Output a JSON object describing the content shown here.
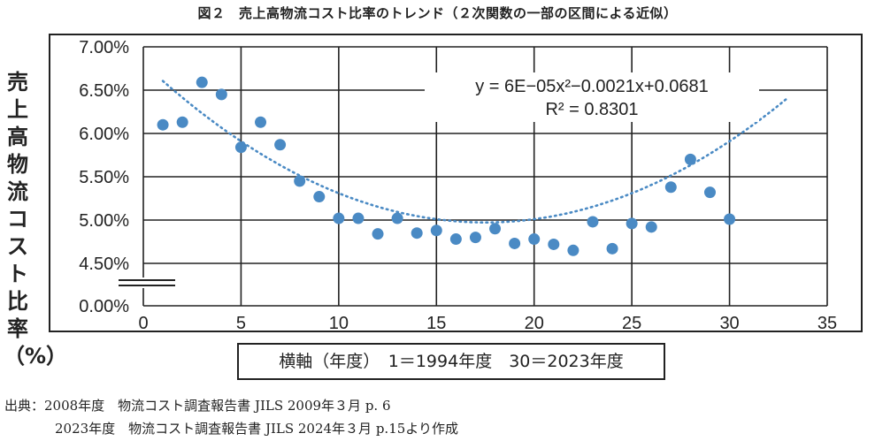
{
  "title": "図２　売上高物流コスト比率のトレンド（２次関数の一部の区間による近似）",
  "chart_data": {
    "type": "scatter",
    "ylabel": "売上高物流コスト比率（%）",
    "xlabel": "横軸（年度）　1＝1994年度　30＝2023年度",
    "xlim": [
      0,
      35
    ],
    "x_ticks": [
      "0",
      "5",
      "10",
      "15",
      "20",
      "25",
      "30",
      "35"
    ],
    "y_ticks": [
      "0.00%",
      "4.50%",
      "5.00%",
      "5.50%",
      "6.00%",
      "6.50%",
      "7.00%"
    ],
    "y_axis_break": true,
    "grid": true,
    "points": [
      {
        "x": 1,
        "y": 6.1
      },
      {
        "x": 2,
        "y": 6.13
      },
      {
        "x": 3,
        "y": 6.59
      },
      {
        "x": 4,
        "y": 6.45
      },
      {
        "x": 5,
        "y": 5.84
      },
      {
        "x": 6,
        "y": 6.13
      },
      {
        "x": 7,
        "y": 5.87
      },
      {
        "x": 8,
        "y": 5.45
      },
      {
        "x": 9,
        "y": 5.27
      },
      {
        "x": 10,
        "y": 5.02
      },
      {
        "x": 11,
        "y": 5.02
      },
      {
        "x": 12,
        "y": 4.84
      },
      {
        "x": 13,
        "y": 5.02
      },
      {
        "x": 14,
        "y": 4.85
      },
      {
        "x": 15,
        "y": 4.88
      },
      {
        "x": 16,
        "y": 4.78
      },
      {
        "x": 17,
        "y": 4.8
      },
      {
        "x": 18,
        "y": 4.9
      },
      {
        "x": 19,
        "y": 4.73
      },
      {
        "x": 20,
        "y": 4.78
      },
      {
        "x": 21,
        "y": 4.72
      },
      {
        "x": 22,
        "y": 4.65
      },
      {
        "x": 23,
        "y": 4.98
      },
      {
        "x": 24,
        "y": 4.67
      },
      {
        "x": 25,
        "y": 4.96
      },
      {
        "x": 26,
        "y": 4.92
      },
      {
        "x": 27,
        "y": 5.38
      },
      {
        "x": 28,
        "y": 5.7
      },
      {
        "x": 29,
        "y": 5.32
      },
      {
        "x": 30,
        "y": 5.01
      }
    ],
    "trendline": {
      "type": "polynomial-2",
      "x_range": [
        1,
        33
      ],
      "coefficients": {
        "a": 6e-05,
        "b": -0.0021,
        "c": 0.0681
      },
      "equation": "y = 6E−05x²−0.0021x+0.0681",
      "r_squared": "R² = 0.8301"
    },
    "colors": {
      "points": "#4a8ac4",
      "trendline": "#4a8ac4",
      "grid": "#222222"
    }
  },
  "source": {
    "line1": "出典：2008年度　物流コスト調査報告書 JILS 2009年３月 p. 6",
    "line2": "2023年度　物流コスト調査報告書 JILS 2024年３月 p.15より作成"
  }
}
